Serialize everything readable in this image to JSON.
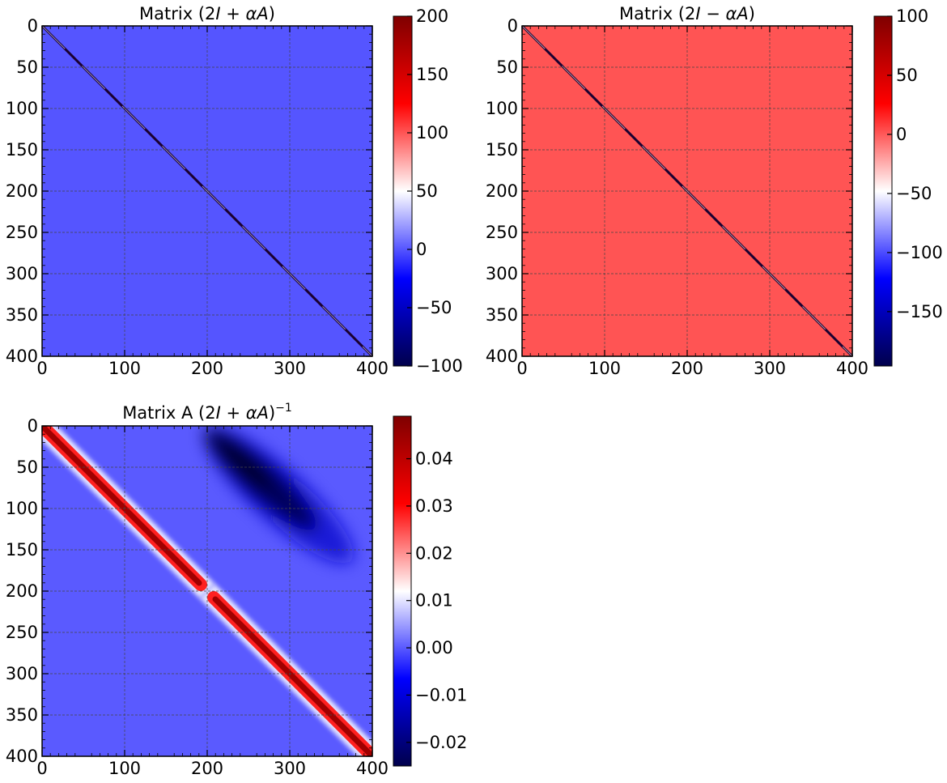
{
  "chart_data": [
    {
      "type": "heatmap",
      "title_prefix": "Matrix ",
      "title_math": "(2I + αA)",
      "title_parts": {
        "a": "(2",
        "b": "I",
        "c": " + ",
        "d": "α",
        "e": "A",
        "f": ")"
      },
      "matrix_size": 400,
      "xticks": [
        "0",
        "100",
        "200",
        "300",
        "400"
      ],
      "yticks": [
        "0",
        "50",
        "100",
        "150",
        "200",
        "250",
        "300",
        "350",
        "400"
      ],
      "xlim": [
        0,
        400
      ],
      "ylim": [
        400,
        0
      ],
      "grid": true,
      "colormap": "seismic",
      "off_diagonal_value": -0.5,
      "diagonal_pattern": "narrow tridiagonal band with large positive/negative entries",
      "colorbar": {
        "vmin": -100,
        "vmax": 200,
        "ticks": [
          -100,
          -50,
          0,
          50,
          100,
          150,
          200
        ],
        "tick_labels": [
          "−100",
          "−50",
          "0",
          "50",
          "100",
          "150",
          "200"
        ]
      }
    },
    {
      "type": "heatmap",
      "title_prefix": "Matrix ",
      "title_math": "(2I − αA)",
      "title_parts": {
        "a": "(2",
        "b": "I",
        "c": " − ",
        "d": "α",
        "e": "A",
        "f": ")"
      },
      "matrix_size": 400,
      "xticks": [
        "0",
        "100",
        "200",
        "300",
        "400"
      ],
      "yticks": [
        "0",
        "50",
        "100",
        "150",
        "200",
        "250",
        "300",
        "350",
        "400"
      ],
      "xlim": [
        0,
        400
      ],
      "ylim": [
        400,
        0
      ],
      "grid": true,
      "colormap": "seismic",
      "off_diagonal_value": 0.5,
      "diagonal_pattern": "narrow tridiagonal band with large negative/positive entries",
      "colorbar": {
        "vmin": -196,
        "vmax": 100,
        "ticks": [
          -150,
          -100,
          -50,
          0,
          50,
          100
        ],
        "tick_labels": [
          "−150",
          "−100",
          "−50",
          "0",
          "50",
          "100"
        ]
      }
    },
    {
      "type": "heatmap",
      "title_prefix": "Matrix A ",
      "title_math": "(2I + αA)^−1",
      "title_parts": {
        "a": "(2",
        "b": "I",
        "c": " + ",
        "d": "α",
        "e": "A",
        "f": ")",
        "sup": "−1"
      },
      "matrix_size": 400,
      "xticks": [
        "0",
        "100",
        "200",
        "300",
        "400"
      ],
      "yticks": [
        "0",
        "50",
        "100",
        "150",
        "200",
        "250",
        "300",
        "350",
        "400"
      ],
      "xlim": [
        0,
        400
      ],
      "ylim": [
        400,
        0
      ],
      "grid": true,
      "colormap": "seismic",
      "background_value": -0.003,
      "bands": [
        {
          "from": [
            0,
            0
          ],
          "to": [
            200,
            200
          ],
          "peak": 0.047,
          "note": "positive diagonal band"
        },
        {
          "from": [
            200,
            200
          ],
          "to": [
            400,
            400
          ],
          "peak": 0.047,
          "note": "positive diagonal band"
        },
        {
          "from": [
            200,
            0
          ],
          "to": [
            400,
            200
          ],
          "peak": -0.025,
          "note": "negative off-diagonal block, min near (280, 60)"
        }
      ],
      "colorbar": {
        "vmin": -0.025,
        "vmax": 0.049,
        "ticks": [
          -0.02,
          -0.01,
          0.0,
          0.01,
          0.02,
          0.03,
          0.04
        ],
        "tick_labels": [
          "−0.02",
          "−0.01",
          "0.00",
          "0.01",
          "0.02",
          "0.03",
          "0.04"
        ]
      }
    }
  ]
}
